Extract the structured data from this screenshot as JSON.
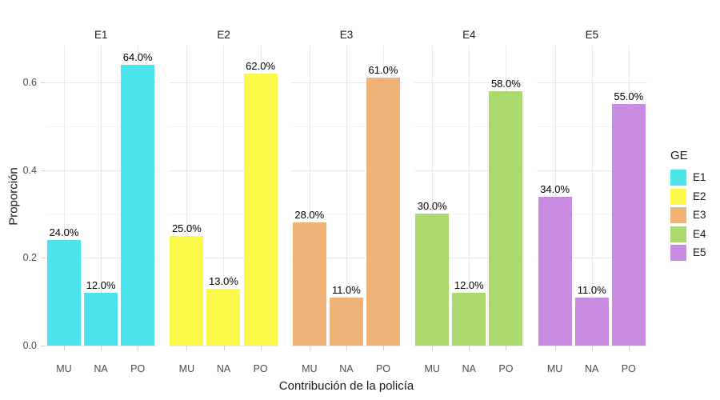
{
  "chart_data": {
    "type": "bar",
    "faceted_by": "GE",
    "categories": [
      "MU",
      "NA",
      "PO"
    ],
    "facets": [
      {
        "name": "E1",
        "color": "#4be4ec",
        "values": [
          0.24,
          0.12,
          0.64
        ],
        "bar_labels": [
          "24.0%",
          "12.0%",
          "64.0%"
        ]
      },
      {
        "name": "E2",
        "color": "#faf94a",
        "values": [
          0.25,
          0.13,
          0.62
        ],
        "bar_labels": [
          "25.0%",
          "13.0%",
          "62.0%"
        ]
      },
      {
        "name": "E3",
        "color": "#f0b377",
        "values": [
          0.28,
          0.11,
          0.61
        ],
        "bar_labels": [
          "28.0%",
          "11.0%",
          "61.0%"
        ]
      },
      {
        "name": "E4",
        "color": "#acd96e",
        "values": [
          0.3,
          0.12,
          0.58
        ],
        "bar_labels": [
          "30.0%",
          "12.0%",
          "58.0%"
        ]
      },
      {
        "name": "E5",
        "color": "#c88ce0",
        "values": [
          0.34,
          0.11,
          0.55
        ],
        "bar_labels": [
          "34.0%",
          "11.0%",
          "55.0%"
        ]
      }
    ],
    "xlabel": "Contribución de la policía",
    "ylabel": "Proporción",
    "ylim": [
      0,
      0.684
    ],
    "y_ticks": [
      0.0,
      0.2,
      0.4,
      0.6
    ],
    "y_tick_labels": [
      "0.0",
      "0.2",
      "0.4",
      "0.6"
    ],
    "y_minor_ticks": [
      0.1,
      0.3,
      0.5
    ],
    "grid": true,
    "legend": {
      "title": "GE",
      "position": "right",
      "entries": [
        {
          "label": "E1",
          "color": "#4be4ec"
        },
        {
          "label": "E2",
          "color": "#faf94a"
        },
        {
          "label": "E3",
          "color": "#f0b377"
        },
        {
          "label": "E4",
          "color": "#acd96e"
        },
        {
          "label": "E5",
          "color": "#c88ce0"
        }
      ]
    },
    "style_colors": {
      "grid_major": "#e9e9e9",
      "grid_minor": "#f4f4f4",
      "tick": "#cfcfcf",
      "tick_label": "#4d4d4d",
      "text": "#1a1a1a"
    }
  }
}
